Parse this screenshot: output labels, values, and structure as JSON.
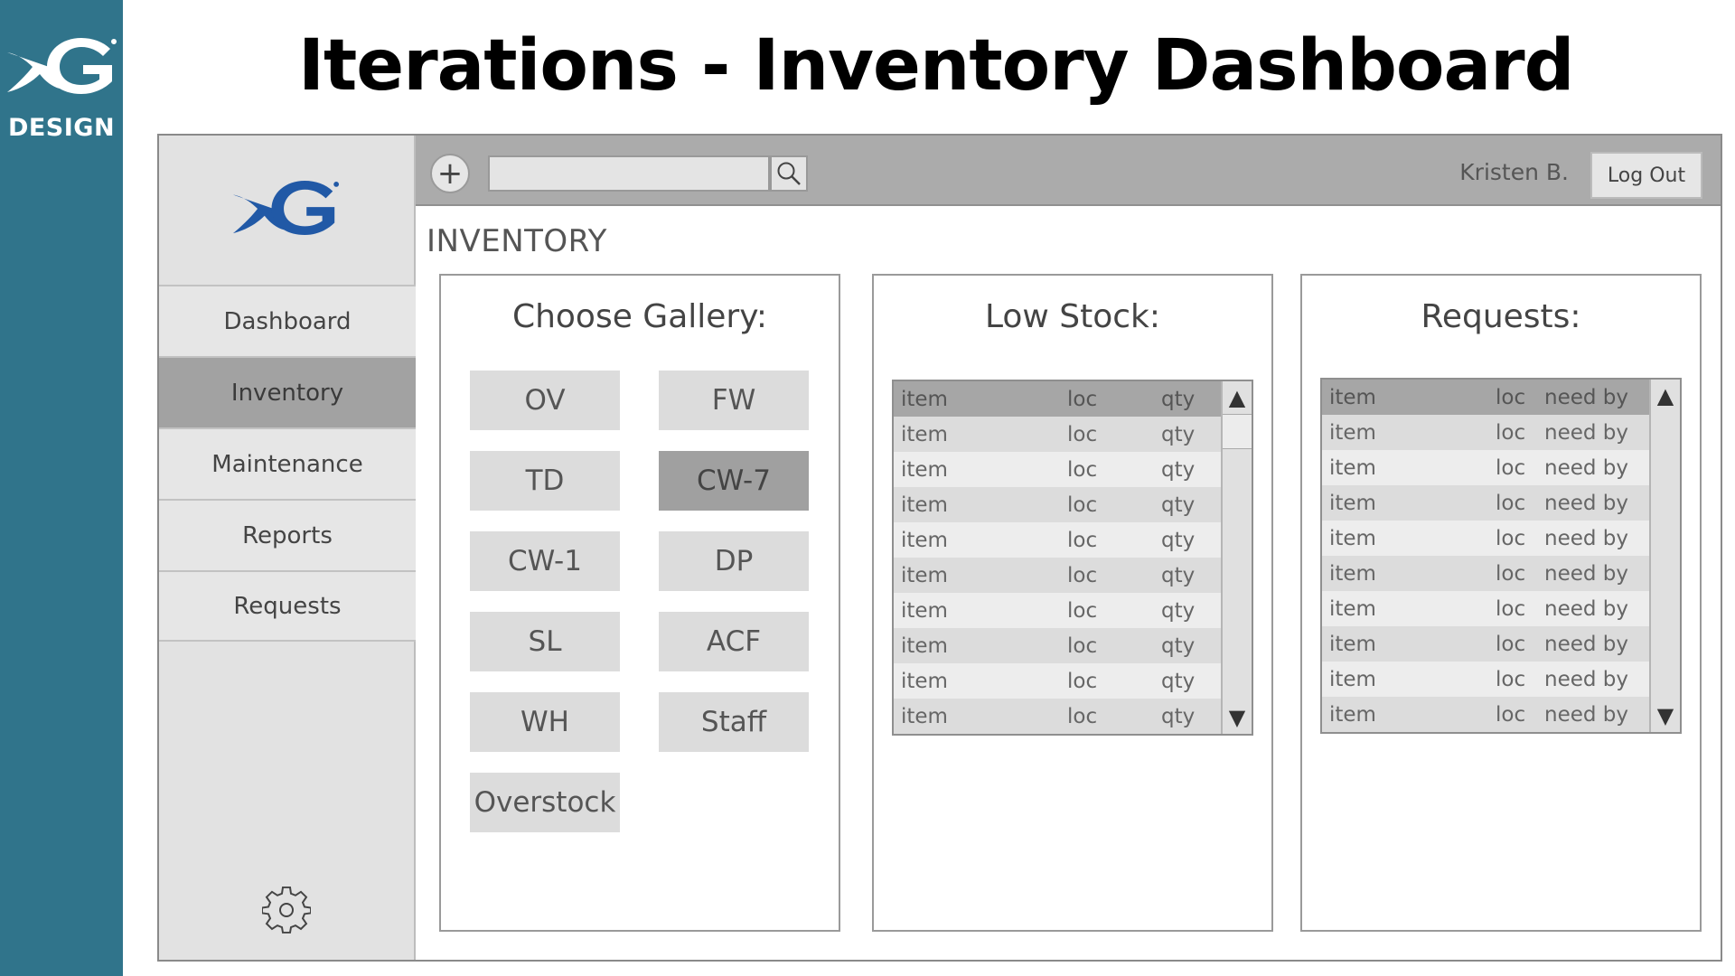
{
  "slide": {
    "band_label": "DESIGN",
    "title": "Iterations - Inventory Dashboard"
  },
  "colors": {
    "band": "#30748b",
    "logo_blue": "#2159a6",
    "topbar": "#ababab",
    "sidebar": "#e2e2e2",
    "active_nav": "#a2a2a2",
    "gallery_button": "#dcdcdc",
    "gallery_active": "#a0a0a0"
  },
  "icons": {
    "brand_logo": "xg-logo-icon",
    "add": "plus-icon",
    "search": "search-icon",
    "settings": "gear-icon",
    "scroll_up": "triangle-up-icon",
    "scroll_down": "triangle-down-icon"
  },
  "topbar": {
    "add_symbol": "+",
    "search_value": "",
    "search_placeholder": "",
    "user_name": "Kristen B.",
    "logout_label": "Log Out"
  },
  "sidebar": {
    "items": [
      {
        "label": "Dashboard",
        "active": false
      },
      {
        "label": "Inventory",
        "active": true
      },
      {
        "label": "Maintenance",
        "active": false
      },
      {
        "label": "Reports",
        "active": false
      },
      {
        "label": "Requests",
        "active": false
      }
    ]
  },
  "main": {
    "page_title": "INVENTORY",
    "gallery": {
      "title": "Choose Gallery:",
      "selected": "CW-7",
      "buttons": [
        "OV",
        "FW",
        "TD",
        "CW-7",
        "CW-1",
        "DP",
        "SL",
        "ACF",
        "WH",
        "Staff",
        "Overstock"
      ]
    },
    "low_stock": {
      "title": "Low Stock:",
      "columns": [
        "item",
        "loc",
        "qty"
      ],
      "rows": [
        [
          "item",
          "loc",
          "qty"
        ],
        [
          "item",
          "loc",
          "qty"
        ],
        [
          "item",
          "loc",
          "qty"
        ],
        [
          "item",
          "loc",
          "qty"
        ],
        [
          "item",
          "loc",
          "qty"
        ],
        [
          "item",
          "loc",
          "qty"
        ],
        [
          "item",
          "loc",
          "qty"
        ],
        [
          "item",
          "loc",
          "qty"
        ],
        [
          "item",
          "loc",
          "qty"
        ]
      ],
      "scroll_up": "▲",
      "scroll_down": "▼"
    },
    "requests": {
      "title": "Requests:",
      "columns": [
        "item",
        "loc",
        "need by"
      ],
      "rows": [
        [
          "item",
          "loc",
          "need by"
        ],
        [
          "item",
          "loc",
          "need by"
        ],
        [
          "item",
          "loc",
          "need by"
        ],
        [
          "item",
          "loc",
          "need by"
        ],
        [
          "item",
          "loc",
          "need by"
        ],
        [
          "item",
          "loc",
          "need by"
        ],
        [
          "item",
          "loc",
          "need by"
        ],
        [
          "item",
          "loc",
          "need by"
        ],
        [
          "item",
          "loc",
          "need by"
        ]
      ],
      "scroll_up": "▲",
      "scroll_down": "▼"
    }
  }
}
